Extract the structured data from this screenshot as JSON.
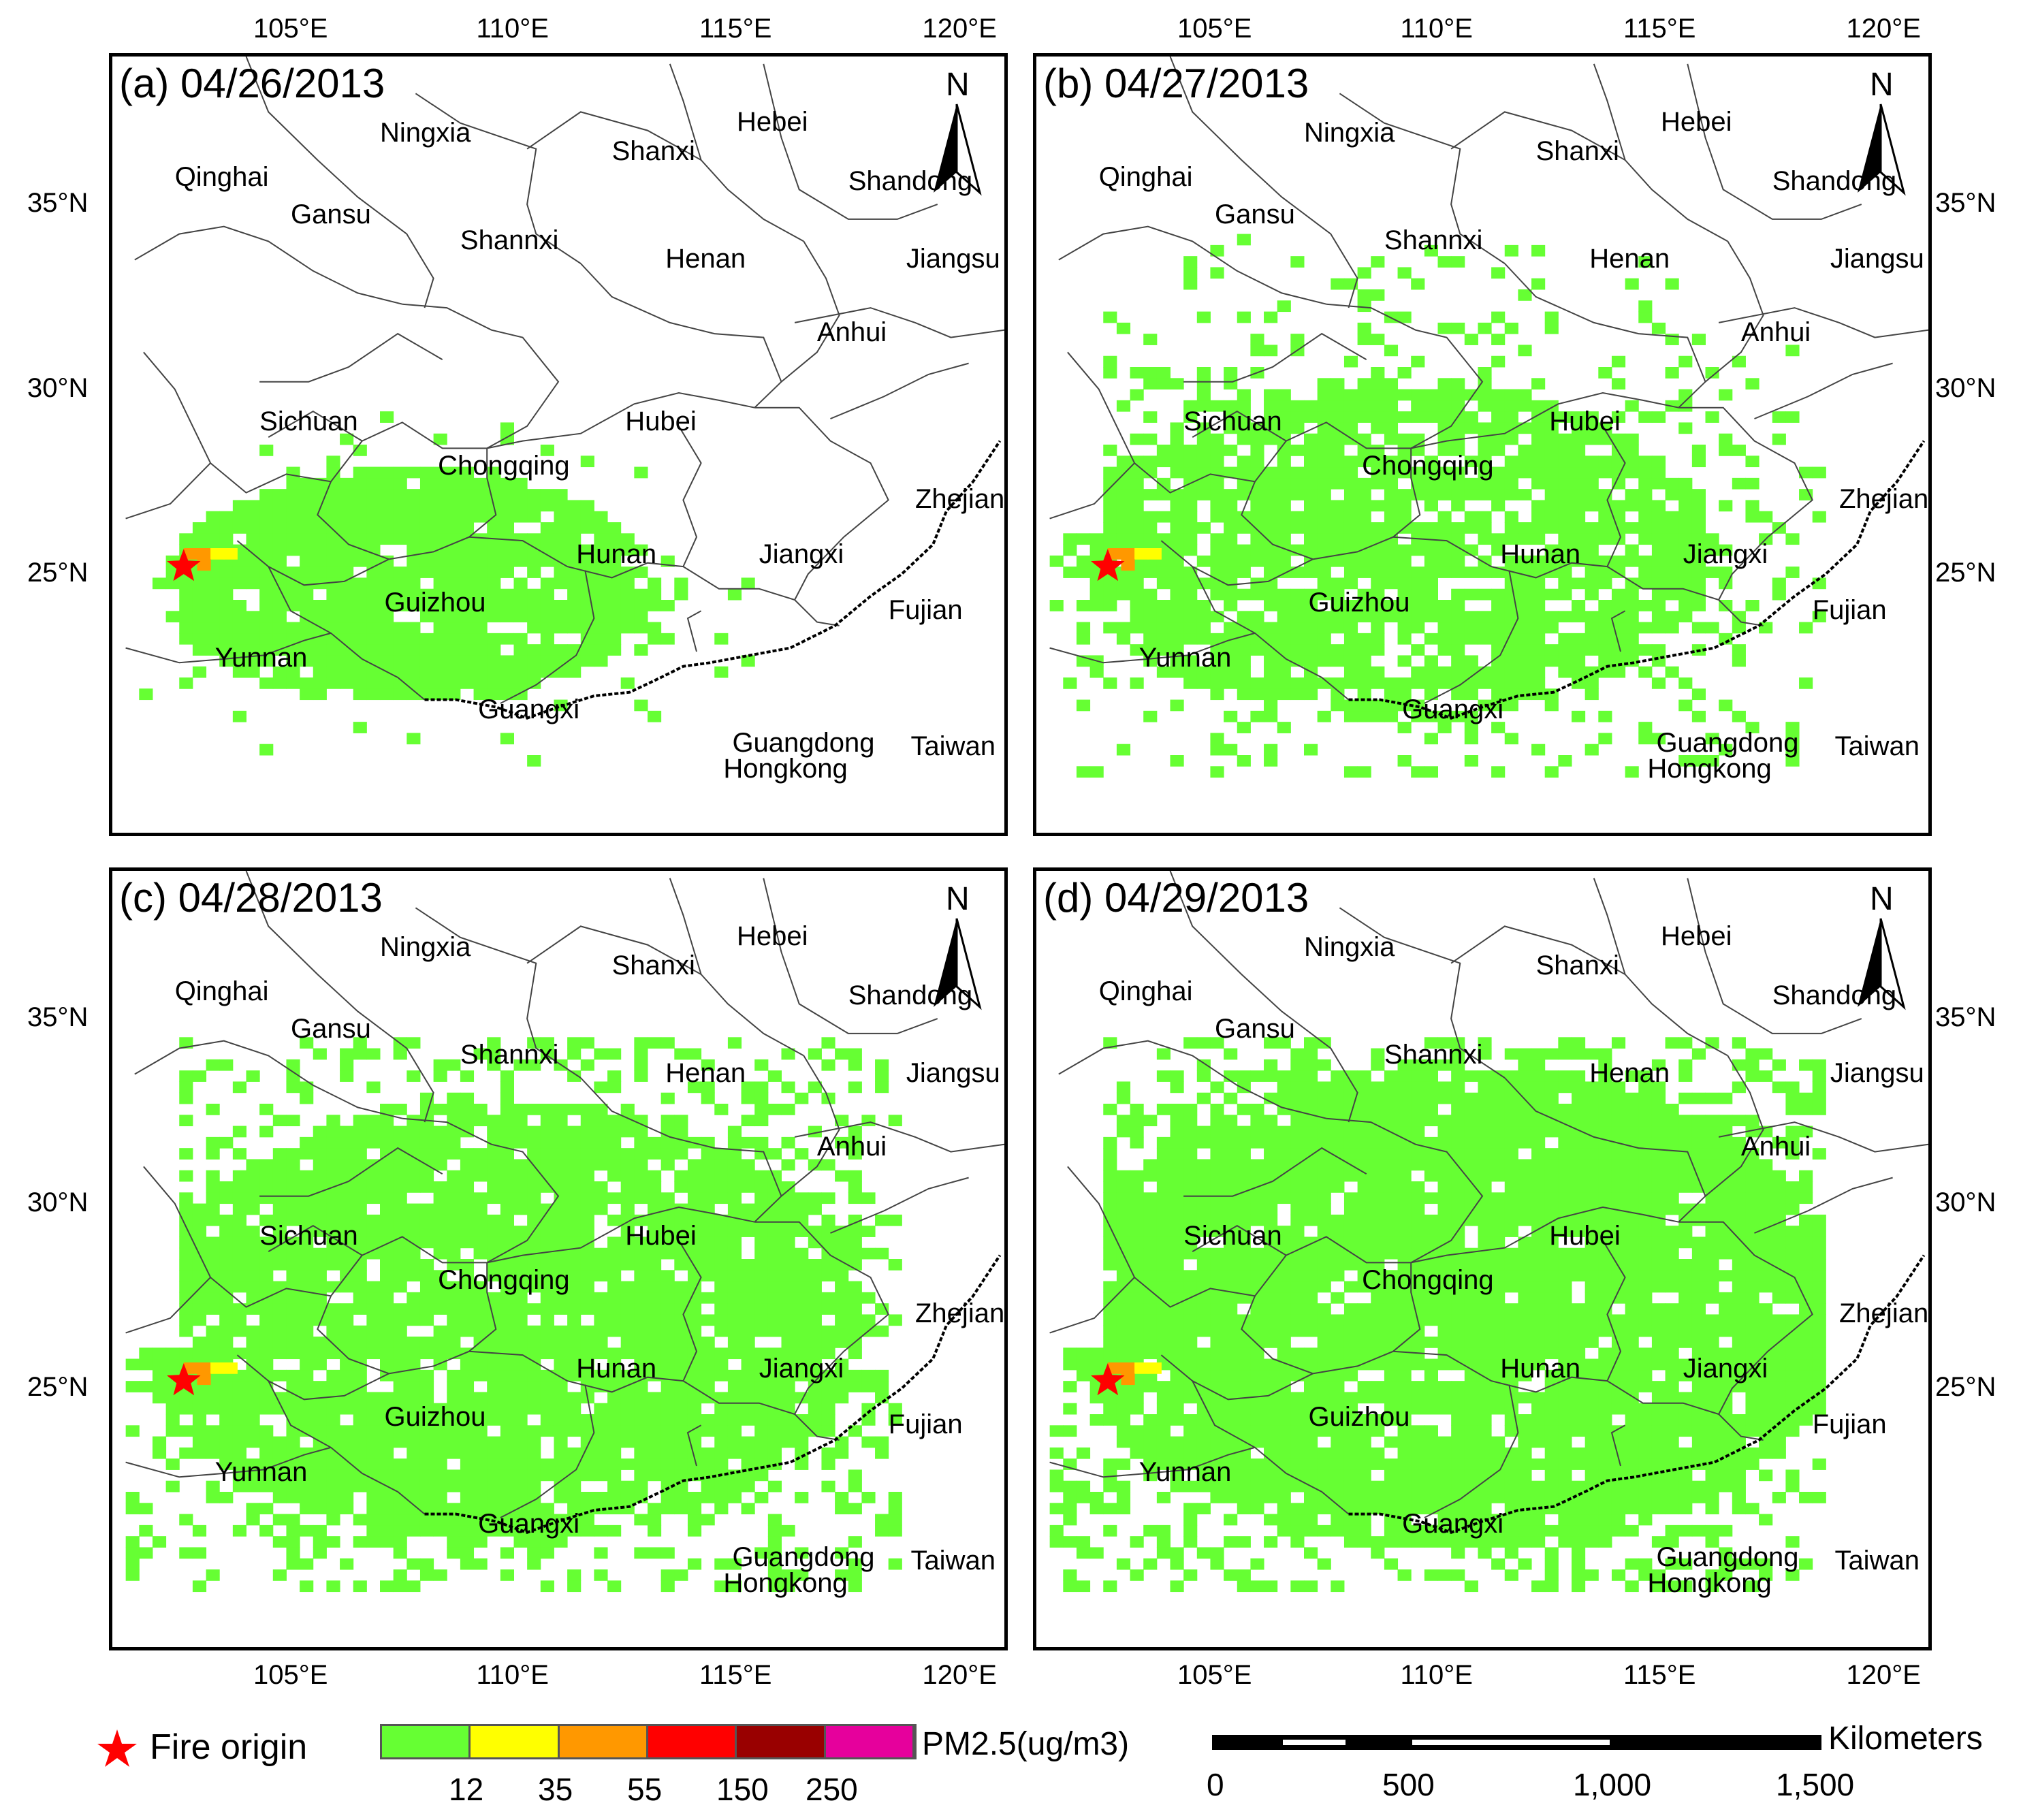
{
  "panels": [
    {
      "label": "(a) 04/26/2013",
      "stage": 0
    },
    {
      "label": "(b) 04/27/2013",
      "stage": 1
    },
    {
      "label": "(c) 04/28/2013",
      "stage": 2
    },
    {
      "label": "(d) 04/29/2013",
      "stage": 3
    }
  ],
  "north_label": "N",
  "regions": [
    {
      "name": "Ningxia",
      "lon": 107.0,
      "lat": 37.3
    },
    {
      "name": "Qinghai",
      "lon": 102.4,
      "lat": 36.1
    },
    {
      "name": "Gansu",
      "lon": 105.0,
      "lat": 35.1
    },
    {
      "name": "Shannxi",
      "lon": 108.8,
      "lat": 34.4
    },
    {
      "name": "Shanxi",
      "lon": 112.2,
      "lat": 36.8
    },
    {
      "name": "Hebei",
      "lon": 115.0,
      "lat": 37.6
    },
    {
      "name": "Shandong",
      "lon": 117.5,
      "lat": 36.0
    },
    {
      "name": "Henan",
      "lon": 113.4,
      "lat": 33.9
    },
    {
      "name": "Jiangsu",
      "lon": 118.8,
      "lat": 33.9
    },
    {
      "name": "Anhui",
      "lon": 116.8,
      "lat": 31.9
    },
    {
      "name": "Sichuan",
      "lon": 104.3,
      "lat": 29.5
    },
    {
      "name": "Hubei",
      "lon": 112.5,
      "lat": 29.5
    },
    {
      "name": "Chongqing",
      "lon": 108.3,
      "lat": 28.3
    },
    {
      "name": "Zhejiang",
      "lon": 119.0,
      "lat": 27.4
    },
    {
      "name": "Hunan",
      "lon": 111.4,
      "lat": 25.9
    },
    {
      "name": "Jiangxi",
      "lon": 115.5,
      "lat": 25.9
    },
    {
      "name": "Guizhou",
      "lon": 107.1,
      "lat": 24.6
    },
    {
      "name": "Fujian",
      "lon": 118.4,
      "lat": 24.4
    },
    {
      "name": "Yunnan",
      "lon": 103.3,
      "lat": 23.1
    },
    {
      "name": "Guangxi",
      "lon": 109.2,
      "lat": 21.7
    },
    {
      "name": "Guangdong",
      "lon": 114.9,
      "lat": 20.8
    },
    {
      "name": "Hongkong",
      "lon": 114.7,
      "lat": 20.1
    },
    {
      "name": "Taiwan",
      "lon": 118.9,
      "lat": 20.7
    }
  ],
  "fire_origin": {
    "lon": 102.6,
    "lat": 25.2
  },
  "plume": {
    "high_cells": [
      [
        102.6,
        25.4,
        "#ff9800"
      ],
      [
        102.9,
        25.4,
        "#ff9800"
      ],
      [
        103.2,
        25.4,
        "#ffff00"
      ],
      [
        103.5,
        25.4,
        "#ffff00"
      ],
      [
        102.9,
        25.1,
        "#ff9800"
      ]
    ]
  },
  "axes": {
    "lon_ticks": [
      "105°E",
      "110°E",
      "115°E",
      "120°E"
    ],
    "lon_values": [
      105,
      110,
      115,
      120
    ],
    "lat_ticks": [
      "35°N",
      "30°N",
      "25°N"
    ],
    "lat_values": [
      35,
      30,
      25
    ],
    "lon_range": [
      101,
      121
    ],
    "lat_range": [
      18,
      39
    ]
  },
  "legend": {
    "fire_label": "Fire origin",
    "pm_label": "PM2.5(ug/m3)",
    "colors": [
      "#66ff33",
      "#ffff00",
      "#ff9800",
      "#ff0000",
      "#990000",
      "#e6009c"
    ],
    "breaks": [
      "12",
      "35",
      "55",
      "150",
      "250"
    ]
  },
  "scalebar": {
    "unit": "Kilometers",
    "labels": [
      "0",
      "500",
      "1,000",
      "1,500"
    ]
  },
  "colors": {
    "pm_low": "#66ff33",
    "fire_star": "#ff0000"
  }
}
